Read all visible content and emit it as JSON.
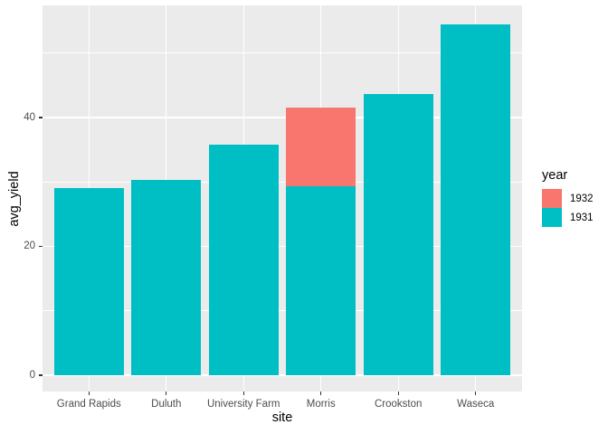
{
  "chart_data": {
    "type": "bar",
    "title": "",
    "xlabel": "site",
    "ylabel": "avg_yield",
    "categories": [
      "Grand Rapids",
      "Duluth",
      "University Farm",
      "Morris",
      "Crookston",
      "Waseca"
    ],
    "series": [
      {
        "name": "1932",
        "color": "#F8766D",
        "values": [
          null,
          null,
          null,
          41.5,
          null,
          null
        ]
      },
      {
        "name": "1931",
        "color": "#00BFC4",
        "values": [
          29.1,
          30.3,
          35.8,
          29.3,
          43.7,
          54.4
        ]
      }
    ],
    "bar_position": "identity",
    "y_ticks": [
      0,
      20,
      40
    ],
    "y_minor_ticks": [
      10,
      30,
      50
    ],
    "ylim": [
      -2.6,
      57.4
    ],
    "grid": true,
    "legend_position": "right"
  },
  "legend": {
    "title": "year",
    "entries": [
      {
        "label": "1932",
        "color": "#F8766D"
      },
      {
        "label": "1931",
        "color": "#00BFC4"
      }
    ]
  },
  "colors": {
    "figure_bg": "#FFFFFF",
    "panel_bg": "#EBEBEB",
    "grid": "#FFFFFF",
    "axis_text": "#4D4D4D",
    "tick_mark": "#333333",
    "title_text": "#000000"
  }
}
